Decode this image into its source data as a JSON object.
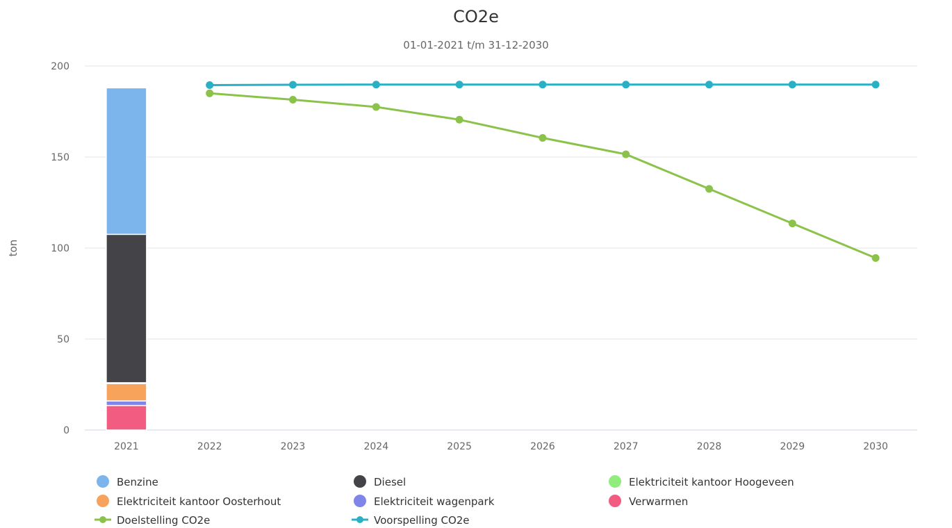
{
  "chart_data": {
    "type": "bar",
    "title": "CO2e",
    "subtitle": "01-01-2021 t/m 31-12-2030",
    "ylabel": "ton",
    "xlabel": "",
    "ylim": [
      0,
      200
    ],
    "yticks": [
      0,
      50,
      100,
      150,
      200
    ],
    "categories": [
      "2021",
      "2022",
      "2023",
      "2024",
      "2025",
      "2026",
      "2027",
      "2028",
      "2029",
      "2030"
    ],
    "grid": true,
    "legend_position": "bottom",
    "stacked_series": [
      {
        "name": "Verwarmen",
        "color": "#f15c80",
        "values": [
          13.5,
          null,
          null,
          null,
          null,
          null,
          null,
          null,
          null,
          null
        ]
      },
      {
        "name": "Elektriciteit wagenpark",
        "color": "#8085e9",
        "values": [
          2.5,
          null,
          null,
          null,
          null,
          null,
          null,
          null,
          null,
          null
        ]
      },
      {
        "name": "Elektriciteit kantoor Oosterhout",
        "color": "#f7a35c",
        "values": [
          9.5,
          null,
          null,
          null,
          null,
          null,
          null,
          null,
          null,
          null
        ]
      },
      {
        "name": "Elektriciteit kantoor Hoogeveen",
        "color": "#90ed7d",
        "values": [
          0.5,
          null,
          null,
          null,
          null,
          null,
          null,
          null,
          null,
          null
        ]
      },
      {
        "name": "Diesel",
        "color": "#434348",
        "values": [
          81.5,
          null,
          null,
          null,
          null,
          null,
          null,
          null,
          null,
          null
        ]
      },
      {
        "name": "Benzine",
        "color": "#7cb5ec",
        "values": [
          80.5,
          null,
          null,
          null,
          null,
          null,
          null,
          null,
          null,
          null
        ]
      }
    ],
    "line_series": [
      {
        "name": "Doelstelling CO2e",
        "color": "#8bc34a",
        "values": [
          null,
          185,
          181.5,
          177.5,
          170.5,
          160.5,
          151.5,
          132.5,
          113.5,
          94.5
        ]
      },
      {
        "name": "Voorspelling CO2e",
        "color": "#2ab0c5",
        "values": [
          null,
          189.5,
          189.7,
          189.8,
          189.8,
          189.8,
          189.8,
          189.8,
          189.8,
          189.8
        ]
      }
    ],
    "legend": [
      {
        "name": "Benzine",
        "color": "#7cb5ec",
        "symbol": "circle"
      },
      {
        "name": "Diesel",
        "color": "#434348",
        "symbol": "circle"
      },
      {
        "name": "Elektriciteit kantoor Hoogeveen",
        "color": "#90ed7d",
        "symbol": "circle"
      },
      {
        "name": "Elektriciteit kantoor Oosterhout",
        "color": "#f7a35c",
        "symbol": "circle"
      },
      {
        "name": "Elektriciteit wagenpark",
        "color": "#8085e9",
        "symbol": "circle"
      },
      {
        "name": "Verwarmen",
        "color": "#f15c80",
        "symbol": "circle"
      },
      {
        "name": "Doelstelling CO2e",
        "color": "#8bc34a",
        "symbol": "line"
      },
      {
        "name": "Voorspelling CO2e",
        "color": "#2ab0c5",
        "symbol": "line"
      }
    ]
  }
}
